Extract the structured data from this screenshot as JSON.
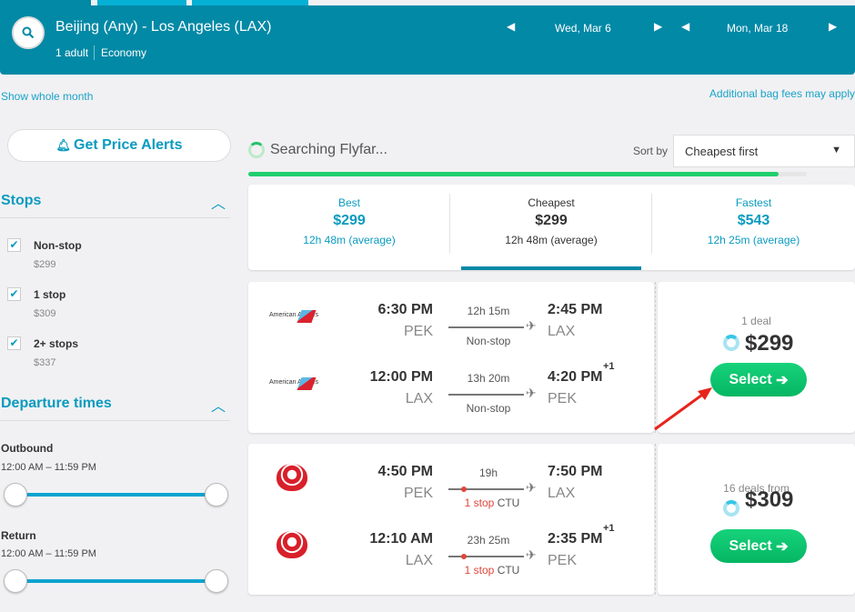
{
  "header": {
    "route": "Beijing (Any) - Los Angeles (LAX)",
    "passengers": "1 adult",
    "cabin": "Economy",
    "depart_date": "Wed, Mar 6",
    "return_date": "Mon, Mar 18"
  },
  "links": {
    "show_month": "Show whole month",
    "bag_fees": "Additional bag fees may apply"
  },
  "alerts": {
    "label": "Get Price Alerts"
  },
  "search_status": "Searching Flyfar...",
  "sort": {
    "label": "Sort by",
    "value": "Cheapest first"
  },
  "progress_percent": 95,
  "filters": {
    "stops_title": "Stops",
    "stops": [
      {
        "label": "Non-stop",
        "price": "$299"
      },
      {
        "label": "1 stop",
        "price": "$309"
      },
      {
        "label": "2+ stops",
        "price": "$337"
      }
    ],
    "times_title": "Departure times",
    "outbound_label": "Outbound",
    "outbound_range": "12:00 AM – 11:59 PM",
    "return_label": "Return",
    "return_range": "12:00 AM – 11:59 PM"
  },
  "tabs": [
    {
      "label": "Best",
      "price": "$299",
      "duration": "12h 48m (average)"
    },
    {
      "label": "Cheapest",
      "price": "$299",
      "duration": "12h 48m (average)"
    },
    {
      "label": "Fastest",
      "price": "$543",
      "duration": "12h 25m (average)"
    }
  ],
  "results": [
    {
      "airline": "American Airlines",
      "deals": "1 deal",
      "price": "$299",
      "select": "Select",
      "legs": [
        {
          "dep": "6:30 PM",
          "from": "PEK",
          "dur": "12h 15m",
          "stops": "Non-stop",
          "arr": "2:45 PM",
          "to": "LAX",
          "plus": ""
        },
        {
          "dep": "12:00 PM",
          "from": "LAX",
          "dur": "13h 20m",
          "stops": "Non-stop",
          "arr": "4:20 PM",
          "to": "PEK",
          "plus": "+1"
        }
      ]
    },
    {
      "airline": "Hainan Airlines",
      "deals": "16 deals from",
      "price": "$309",
      "select": "Select",
      "legs": [
        {
          "dep": "4:50 PM",
          "from": "PEK",
          "dur": "19h",
          "stops": "1 stop",
          "via": "CTU",
          "arr": "7:50 PM",
          "to": "LAX",
          "plus": ""
        },
        {
          "dep": "12:10 AM",
          "from": "LAX",
          "dur": "23h 25m",
          "stops": "1 stop",
          "via": "CTU",
          "arr": "2:35 PM",
          "to": "PEK",
          "plus": "+1"
        }
      ]
    }
  ]
}
